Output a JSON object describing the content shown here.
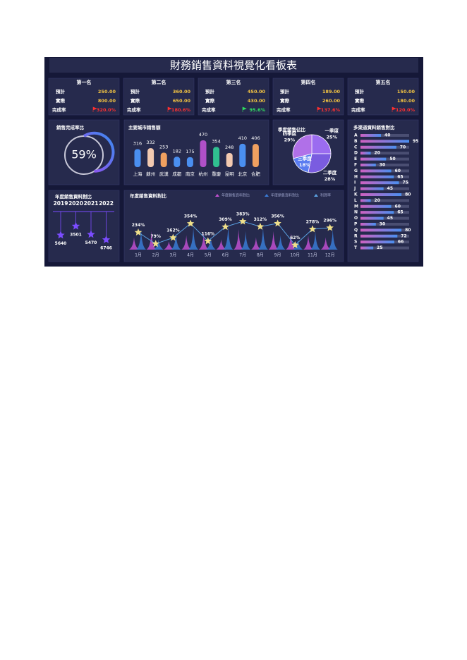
{
  "header": {
    "title": "財務銷售資料視覺化看板表"
  },
  "card_labels": [
    "預計",
    "實際",
    "完成率"
  ],
  "cards": [
    {
      "rank": "第一名",
      "planned": "250.00",
      "actual": "800.00",
      "rate": "320.0%",
      "rate_color": "#ff3030"
    },
    {
      "rank": "第二名",
      "planned": "360.00",
      "actual": "650.00",
      "rate": "180.6%",
      "rate_color": "#ff3030"
    },
    {
      "rank": "第三名",
      "planned": "450.00",
      "actual": "430.00",
      "rate": "95.6%",
      "rate_color": "#30e060"
    },
    {
      "rank": "第四名",
      "planned": "189.00",
      "actual": "260.00",
      "rate": "137.6%",
      "rate_color": "#ff3030"
    },
    {
      "rank": "第五名",
      "planned": "150.00",
      "actual": "180.00",
      "rate": "120.0%",
      "rate_color": "#ff3030"
    }
  ],
  "chart_data": [
    {
      "type": "donut",
      "title": "銷售完成率比",
      "values": [
        59
      ],
      "value_labels": [
        "59%"
      ],
      "color": "#7b5cff"
    },
    {
      "type": "bar",
      "title": "主要城市銷售額",
      "categories": [
        "上海",
        "蘇州",
        "武漢",
        "成都",
        "南京",
        "杭州",
        "重慶",
        "昆明",
        "北京",
        "合肥"
      ],
      "values": [
        316,
        332,
        253,
        182,
        175,
        470,
        354,
        248,
        410,
        406
      ],
      "colors": [
        "#4a8ff0",
        "#f2c9b0",
        "#f0a060",
        "#4a8ff0",
        "#4a8ff0",
        "#b050c8",
        "#30c090",
        "#f2c9b0",
        "#4a8ff0",
        "#f0a060"
      ]
    },
    {
      "type": "pie",
      "title": "季度銷售佔比",
      "categories": [
        "一季度",
        "二季度",
        "三季度",
        "四季度"
      ],
      "values": [
        25,
        28,
        18,
        29
      ],
      "value_labels": [
        "25%",
        "28%",
        "18%",
        "29%"
      ],
      "colors": [
        "#9b6cf0",
        "#7a5ce0",
        "#5a7cf0",
        "#b070e8"
      ]
    },
    {
      "type": "hbar",
      "title": "多渠道資料銷售對比",
      "categories": [
        "A",
        "B",
        "C",
        "D",
        "E",
        "F",
        "G",
        "H",
        "I",
        "J",
        "K",
        "L",
        "M",
        "N",
        "O",
        "P",
        "Q",
        "R",
        "S",
        "T"
      ],
      "values": [
        40,
        95,
        70,
        20,
        50,
        30,
        60,
        65,
        75,
        45,
        80,
        20,
        60,
        65,
        45,
        30,
        80,
        72,
        66,
        25
      ]
    },
    {
      "type": "lollipop",
      "title": "年度銷售資料對比",
      "categories": [
        "2019",
        "2020",
        "2021",
        "2022"
      ],
      "values": [
        5640,
        3501,
        5470,
        6746
      ],
      "color": "#7b4cff"
    },
    {
      "type": "combo",
      "title": "年度銷售資料對比",
      "categories": [
        "1月",
        "2月",
        "3月",
        "4月",
        "5月",
        "6月",
        "7月",
        "8月",
        "9月",
        "10月",
        "11月",
        "12月"
      ],
      "series": [
        {
          "name": "年度銷售資料對比",
          "color": "#c04fd0",
          "values": [
            30,
            45,
            20,
            35,
            40,
            25,
            50,
            30,
            45,
            40,
            35,
            30
          ]
        },
        {
          "name": "年度銷售資料對比",
          "color": "#3a7bd5",
          "values": [
            50,
            25,
            40,
            55,
            30,
            60,
            45,
            55,
            35,
            25,
            45,
            50
          ]
        },
        {
          "name": "利潤率",
          "color": "#5aa0e0",
          "values": [
            234,
            79,
            162,
            354,
            116,
            309,
            383,
            312,
            356,
            62,
            278,
            296
          ],
          "value_labels": [
            "234%",
            "79%",
            "162%",
            "354%",
            "116%",
            "309%",
            "383%",
            "312%",
            "356%",
            "62%",
            "278%",
            "296%"
          ]
        }
      ]
    }
  ]
}
